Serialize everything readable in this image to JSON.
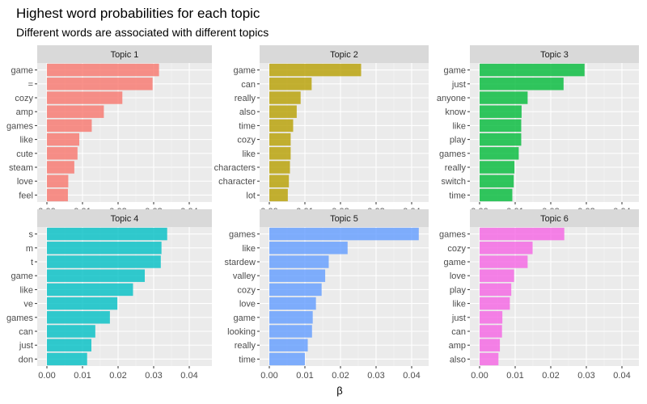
{
  "chart_data": {
    "type": "bar",
    "title": "Highest word probabilities for each topic",
    "subtitle": "Different words are associated with different topics",
    "xlabel": "β",
    "ylabel": "",
    "xlim": [
      0,
      0.044
    ],
    "x_ticks": [
      "0.00",
      "0.01",
      "0.02",
      "0.03",
      "0.04"
    ],
    "grid": true,
    "legend": "none",
    "colors": [
      "#F8766D",
      "#B79F00",
      "#00BA38",
      "#00BFC4",
      "#619CFF",
      "#F564E3"
    ],
    "facets": [
      {
        "name": "Topic 1",
        "categories": [
          "game",
          "=",
          "cozy",
          "amp",
          "games",
          "like",
          "cute",
          "steam",
          "love",
          "feel"
        ],
        "values": [
          0.0315,
          0.0297,
          0.0212,
          0.016,
          0.0126,
          0.0091,
          0.0086,
          0.0077,
          0.006,
          0.0059
        ]
      },
      {
        "name": "Topic 2",
        "categories": [
          "game",
          "can",
          "really",
          "also",
          "time",
          "cozy",
          "like",
          "characters",
          "character",
          "lot"
        ],
        "values": [
          0.0258,
          0.0119,
          0.0088,
          0.0077,
          0.0067,
          0.006,
          0.006,
          0.0058,
          0.0055,
          0.0052
        ]
      },
      {
        "name": "Topic 3",
        "categories": [
          "game",
          "just",
          "anyone",
          "know",
          "like",
          "play",
          "games",
          "really",
          "switch",
          "time"
        ],
        "values": [
          0.0295,
          0.0236,
          0.0135,
          0.0118,
          0.0117,
          0.0117,
          0.011,
          0.0098,
          0.0096,
          0.0092
        ]
      },
      {
        "name": "Topic 4",
        "categories": [
          "s",
          "m",
          "t",
          "game",
          "like",
          "ve",
          "games",
          "can",
          "just",
          "don"
        ],
        "values": [
          0.0338,
          0.0322,
          0.032,
          0.0275,
          0.0242,
          0.0198,
          0.0177,
          0.0136,
          0.0125,
          0.0113
        ]
      },
      {
        "name": "Topic 5",
        "categories": [
          "games",
          "like",
          "stardew",
          "valley",
          "cozy",
          "love",
          "game",
          "looking",
          "really",
          "time"
        ],
        "values": [
          0.042,
          0.022,
          0.0167,
          0.0157,
          0.0147,
          0.0131,
          0.0122,
          0.012,
          0.0108,
          0.01
        ]
      },
      {
        "name": "Topic 6",
        "categories": [
          "games",
          "cozy",
          "game",
          "love",
          "play",
          "like",
          "just",
          "can",
          "amp",
          "also"
        ],
        "values": [
          0.0238,
          0.0149,
          0.0135,
          0.0097,
          0.0089,
          0.0085,
          0.0064,
          0.0063,
          0.0057,
          0.0053
        ]
      }
    ]
  }
}
